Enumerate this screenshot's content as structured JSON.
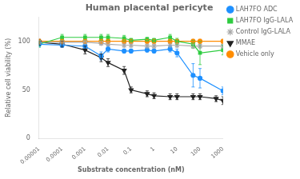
{
  "chart_data": {
    "type": "line",
    "title": "Human placental pericyte",
    "x_label": "Substrate concentration (nM)",
    "y_label": "Relative cell viability (%)",
    "log": "x",
    "grid": false,
    "legend": "upper right",
    "xlim": [
      1e-05,
      1000
    ],
    "xticks": [
      1e-05,
      0.0001,
      0.001,
      0.01,
      0.1,
      1,
      10,
      100,
      1000
    ],
    "ylim": [
      0,
      125
    ],
    "yticks": [
      0,
      50,
      100
    ],
    "x": [
      1e-05,
      0.0001,
      0.001,
      0.005,
      0.01,
      0.05,
      0.1,
      0.5,
      1,
      5,
      10,
      50,
      100,
      500,
      1000
    ],
    "series": [
      {
        "name": "LAH7FO ADC",
        "color": "#1E90FF",
        "marker": "o",
        "values": [
          97,
          96,
          95,
          85,
          92,
          90,
          90,
          91,
          90,
          92,
          88,
          65,
          62,
          null,
          49
        ],
        "yerr": [
          3,
          2,
          2,
          4,
          3,
          2,
          2,
          2,
          2,
          3,
          4,
          12,
          10,
          null,
          4
        ]
      },
      {
        "name": "LAH7FO IgG-LALA",
        "color": "#2ECC40",
        "marker": "s",
        "values": [
          97,
          104,
          104,
          104,
          104,
          103,
          101,
          102,
          101,
          104,
          100,
          97,
          88,
          null,
          91
        ],
        "yerr": [
          3,
          3,
          3,
          3,
          3,
          3,
          2,
          2,
          2,
          3,
          3,
          4,
          12,
          null,
          5
        ]
      },
      {
        "name": "Control IgG-LALA",
        "color": "#AAAAAA",
        "marker": "*",
        "values": [
          99,
          99,
          99,
          98,
          97,
          96,
          96,
          95,
          95,
          96,
          96,
          95,
          95,
          null,
          95
        ],
        "yerr": [
          2,
          2,
          2,
          2,
          2,
          2,
          2,
          2,
          2,
          2,
          2,
          2,
          2,
          null,
          2
        ]
      },
      {
        "name": "MMAE",
        "color": "#222222",
        "marker": "v",
        "values": [
          99,
          97,
          91,
          83,
          78,
          70,
          50,
          46,
          44,
          43,
          43,
          43,
          43,
          41,
          39
        ],
        "yerr": [
          3,
          3,
          4,
          4,
          4,
          4,
          3,
          3,
          3,
          3,
          3,
          3,
          3,
          3,
          4
        ]
      },
      {
        "name": "Vehicle only",
        "color": "#FF8C00",
        "marker": "o",
        "values": [
          100,
          100,
          100,
          100,
          100,
          100,
          100,
          100,
          100,
          100,
          100,
          100,
          100,
          null,
          100
        ],
        "yerr": [
          2,
          2,
          2,
          2,
          2,
          2,
          2,
          2,
          2,
          2,
          2,
          2,
          2,
          null,
          2
        ]
      }
    ]
  }
}
